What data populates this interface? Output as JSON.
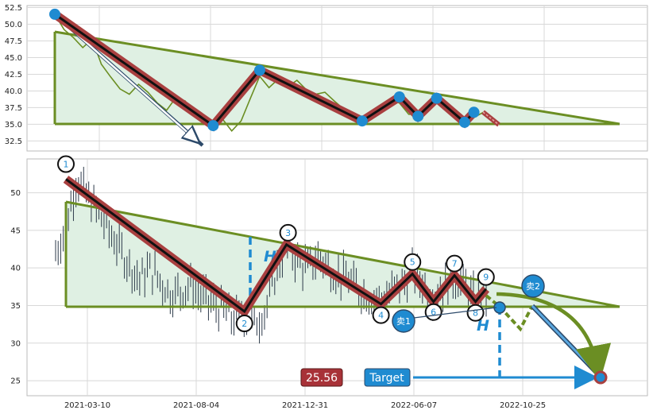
{
  "chart_data": [
    {
      "type": "line",
      "title": "",
      "xlabel": "",
      "ylabel": "",
      "ylim": [
        31.0,
        52.8
      ],
      "y_ticks": [
        "32.5",
        "35.0",
        "37.5",
        "40.0",
        "42.5",
        "45.0",
        "47.5",
        "50.0",
        "52.5"
      ],
      "grid": true,
      "series": [
        {
          "values": [
            51.5,
            49.2,
            48.0,
            46.5,
            47.8,
            44.0,
            42.1,
            40.3,
            39.5,
            41.0,
            39.8,
            38.2,
            37.1,
            39.0,
            38.5,
            36.5,
            35.1,
            34.2,
            35.8,
            34.0,
            35.5,
            38.9,
            42.2,
            40.5,
            41.8,
            40.6,
            41.6,
            40.2,
            39.5,
            39.8,
            38.5,
            37.3,
            36.8,
            35.5,
            36.0,
            37.3,
            38.7,
            38.2,
            36.5,
            36.5,
            37.5,
            38.8,
            37.8,
            36.2,
            35.3,
            36.0,
            36.8,
            35.9
          ]
        }
      ],
      "zigzag_points": [
        [
          0,
          51.5
        ],
        [
          17,
          34.8
        ],
        [
          22,
          43.1
        ],
        [
          33,
          35.5
        ],
        [
          37,
          39.1
        ],
        [
          39,
          36.2
        ],
        [
          41,
          38.9
        ],
        [
          44,
          35.3
        ],
        [
          45,
          36.8
        ]
      ],
      "trendline_upper": [
        [
          0,
          48.8
        ],
        [
          57,
          34.8
        ]
      ],
      "support": 34.8
    },
    {
      "type": "line",
      "title": "",
      "xlabel": "",
      "ylabel": "",
      "ylim": [
        23.0,
        54.5
      ],
      "y_ticks": [
        "25",
        "30",
        "35",
        "40",
        "45",
        "50"
      ],
      "x_ticks": [
        "2021-03-10",
        "2021-08-04",
        "2021-12-31",
        "2022-06-07",
        "2022-10-25"
      ],
      "grid": true,
      "series": [
        {
          "values": [
            42.0,
            45.5,
            52.0,
            49.5,
            47.5,
            45.0,
            42.8,
            40.5,
            38.5,
            39.8,
            38.2,
            36.5,
            37.0,
            37.8,
            36.0,
            35.2,
            34.0,
            33.2,
            33.8,
            32.5,
            34.5,
            39.5,
            43.1,
            41.0,
            39.8,
            41.5,
            40.2,
            39.0,
            38.2,
            37.0,
            36.2,
            35.5,
            36.8,
            37.8,
            39.2,
            38.0,
            36.2,
            37.5,
            38.8,
            37.5,
            35.5,
            36.5
          ]
        }
      ],
      "zigzag_points": [
        [
          0,
          51.8
        ],
        [
          17,
          34.2
        ],
        [
          21,
          43.1
        ],
        [
          30,
          35.2
        ],
        [
          33,
          39.2
        ],
        [
          35,
          35.5
        ],
        [
          37,
          39.0
        ],
        [
          39,
          35.5
        ],
        [
          40,
          37.2
        ]
      ],
      "trendline_upper": [
        [
          0,
          48.6
        ],
        [
          50,
          34.8
        ]
      ],
      "support": 34.8,
      "projection": [
        [
          40,
          37.2
        ],
        [
          41,
          34.8
        ],
        [
          42,
          32.0
        ],
        [
          43,
          36.0
        ],
        [
          48,
          25.5
        ]
      ],
      "annotations": [
        "1",
        "2",
        "3",
        "4",
        "5",
        "6",
        "7",
        "8",
        "9",
        "H",
        "H",
        "卖1",
        "卖2",
        "25.56",
        "Target"
      ]
    }
  ],
  "colors": {
    "zigzag_outer": "#a94040",
    "zigzag_inner": "#111111",
    "trend": "#6b8e23",
    "fill": "#dff0e3",
    "price": "#2d3a4a",
    "accent": "#1f8bd1",
    "grid": "#d8d8d8",
    "label_red": "#a83238"
  }
}
